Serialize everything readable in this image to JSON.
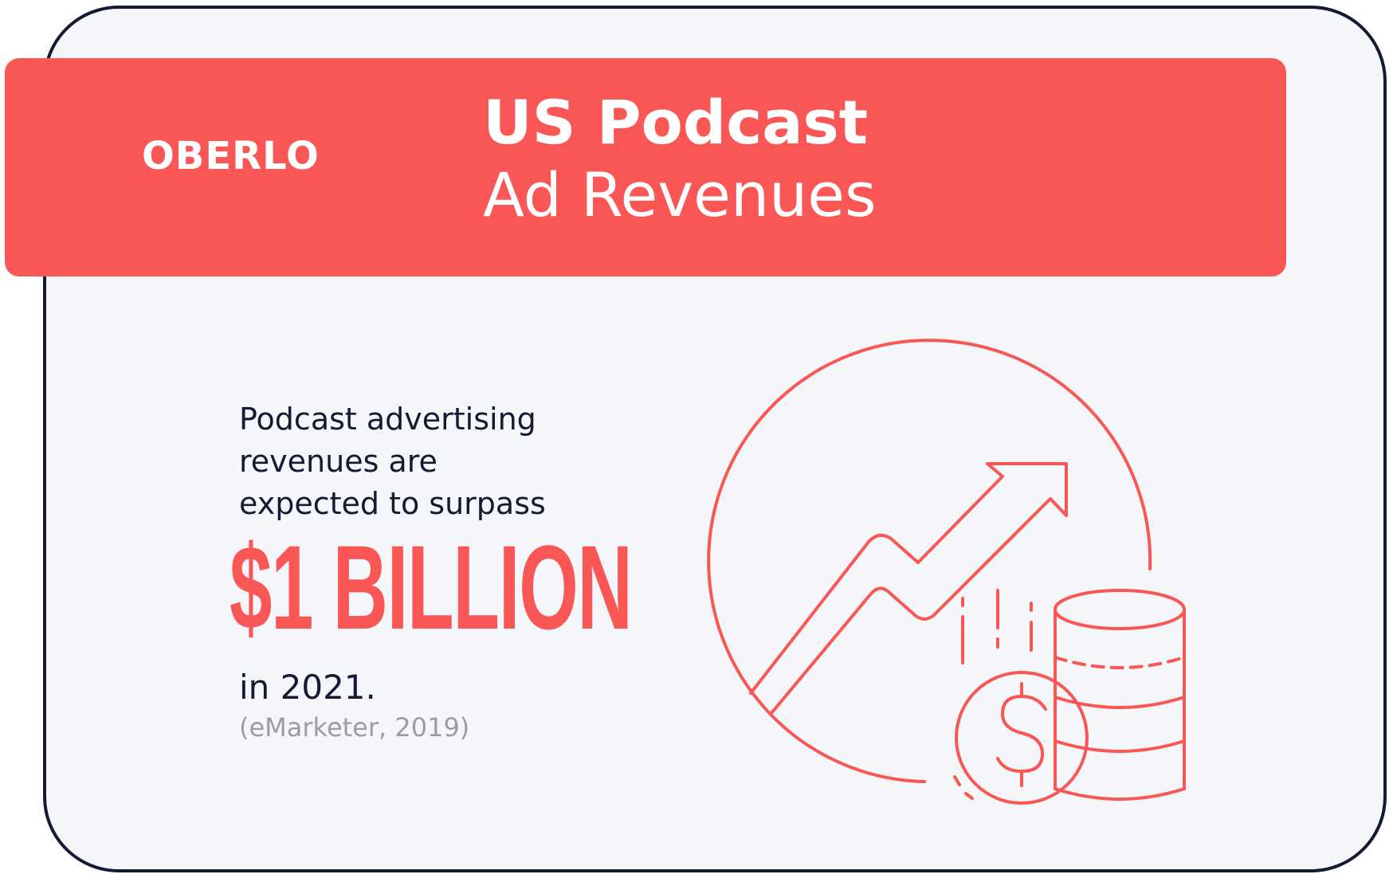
{
  "brand": {
    "logo_text": "OBERLO"
  },
  "header": {
    "title_line1": "US Podcast",
    "title_line2": "Ad Revenues"
  },
  "body": {
    "line1": "Podcast advertising",
    "line2": "revenues are",
    "line3": "expected to surpass",
    "highlight": "$1 BILLION",
    "year_text": "in 2021.",
    "source": "(eMarketer, 2019)"
  },
  "colors": {
    "accent": "#f95755",
    "dark": "#151a33",
    "card_bg": "#f5f6f9",
    "muted": "#9b9ca4"
  },
  "icons": {
    "illustration": "growth-chart-coins-icon"
  }
}
